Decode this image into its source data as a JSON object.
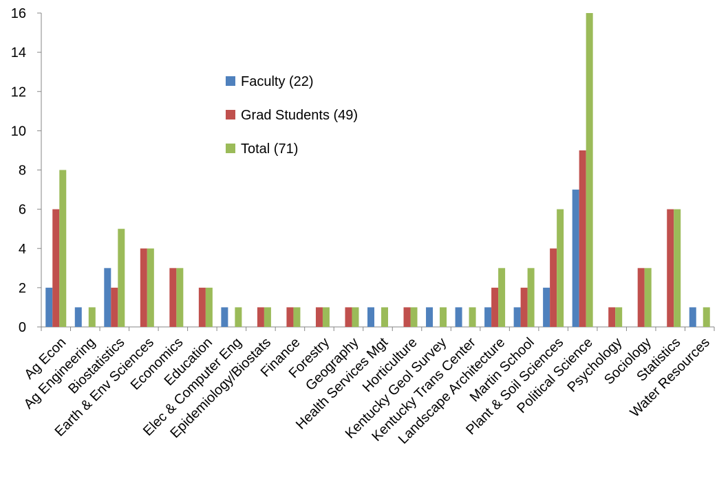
{
  "chart_data": {
    "type": "bar",
    "categories": [
      "Ag Econ",
      "Ag Engineering",
      "Biostatistics",
      "Earth & Env Sciences",
      "Economics",
      "Education",
      "Elec & Computer Eng",
      "Epidemiology/Biostats",
      "Finance",
      "Forestry",
      "Geography",
      "Health Services Mgt",
      "Horticulture",
      "Kentucky Geol Survey",
      "Kentucky Trans Center",
      "Landscape Architecture",
      "Martin School",
      "Plant & Soil Sciences",
      "Political Science",
      "Psychology",
      "Sociology",
      "Statistics",
      "Water Resources"
    ],
    "series": [
      {
        "name": "Faculty (22)",
        "color": "#4F81BD",
        "values": [
          2,
          1,
          3,
          0,
          0,
          0,
          1,
          0,
          0,
          0,
          0,
          1,
          0,
          1,
          1,
          1,
          1,
          2,
          7,
          0,
          0,
          0,
          1
        ]
      },
      {
        "name": "Grad Students (49)",
        "color": "#C0504D",
        "values": [
          6,
          0,
          2,
          4,
          3,
          2,
          0,
          1,
          1,
          1,
          1,
          0,
          1,
          0,
          0,
          2,
          2,
          4,
          9,
          1,
          3,
          6,
          0
        ]
      },
      {
        "name": "Total (71)",
        "color": "#9BBB59",
        "values": [
          8,
          1,
          5,
          4,
          3,
          2,
          1,
          1,
          1,
          1,
          1,
          1,
          1,
          1,
          1,
          3,
          3,
          6,
          16,
          1,
          3,
          6,
          1
        ]
      }
    ],
    "ylim": [
      0,
      16
    ],
    "yticks": [
      0,
      2,
      4,
      6,
      8,
      10,
      12,
      14,
      16
    ],
    "grid": false,
    "legend_position": "upper-middle-left",
    "xlabel": "",
    "ylabel": "",
    "title": ""
  }
}
